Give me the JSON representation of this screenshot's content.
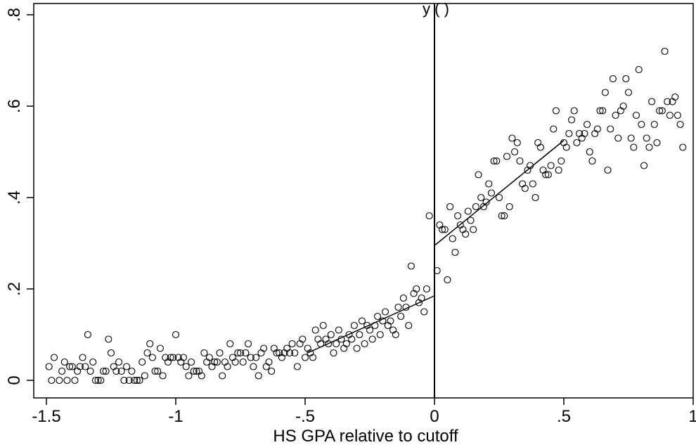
{
  "chart_data": {
    "type": "scatter",
    "title_partial": "y (   )",
    "xlabel": "HS GPA relative to cutoff",
    "ylabel": "",
    "xlim": [
      -1.5,
      1.0
    ],
    "ylim": [
      0,
      0.8
    ],
    "x_ticks": [
      {
        "value": -1.5,
        "label": "-1.5"
      },
      {
        "value": -1.0,
        "label": "-1"
      },
      {
        "value": -0.5,
        "label": "-.5"
      },
      {
        "value": 0.0,
        "label": "0"
      },
      {
        "value": 0.5,
        "label": ".5"
      },
      {
        "value": 1.0,
        "label": "1"
      }
    ],
    "y_ticks": [
      {
        "value": 0,
        "label": "0"
      },
      {
        "value": 0.2,
        "label": ".2"
      },
      {
        "value": 0.4,
        "label": ".4"
      },
      {
        "value": 0.6,
        "label": ".6"
      },
      {
        "value": 0.8,
        "label": ".8"
      }
    ],
    "cutoff_x": 0,
    "grid": false,
    "legend": "none",
    "points": [
      [
        -1.49,
        0.03
      ],
      [
        -1.48,
        0.0
      ],
      [
        -1.47,
        0.05
      ],
      [
        -1.45,
        0.0
      ],
      [
        -1.44,
        0.02
      ],
      [
        -1.43,
        0.04
      ],
      [
        -1.42,
        0.0
      ],
      [
        -1.41,
        0.03
      ],
      [
        -1.4,
        0.03
      ],
      [
        -1.39,
        0.0
      ],
      [
        -1.38,
        0.02
      ],
      [
        -1.37,
        0.03
      ],
      [
        -1.36,
        0.05
      ],
      [
        -1.35,
        0.03
      ],
      [
        -1.34,
        0.1
      ],
      [
        -1.33,
        0.02
      ],
      [
        -1.32,
        0.04
      ],
      [
        -1.31,
        0.0
      ],
      [
        -1.3,
        0.0
      ],
      [
        -1.29,
        0.0
      ],
      [
        -1.28,
        0.02
      ],
      [
        -1.27,
        0.02
      ],
      [
        -1.26,
        0.09
      ],
      [
        -1.25,
        0.06
      ],
      [
        -1.24,
        0.03
      ],
      [
        -1.23,
        0.02
      ],
      [
        -1.22,
        0.04
      ],
      [
        -1.21,
        0.02
      ],
      [
        -1.2,
        0.0
      ],
      [
        -1.19,
        0.03
      ],
      [
        -1.18,
        0.0
      ],
      [
        -1.17,
        0.02
      ],
      [
        -1.16,
        0.0
      ],
      [
        -1.15,
        0.0
      ],
      [
        -1.14,
        0.0
      ],
      [
        -1.13,
        0.04
      ],
      [
        -1.12,
        0.01
      ],
      [
        -1.11,
        0.06
      ],
      [
        -1.1,
        0.08
      ],
      [
        -1.09,
        0.05
      ],
      [
        -1.08,
        0.02
      ],
      [
        -1.07,
        0.02
      ],
      [
        -1.06,
        0.07
      ],
      [
        -1.05,
        0.01
      ],
      [
        -1.04,
        0.05
      ],
      [
        -1.03,
        0.04
      ],
      [
        -1.02,
        0.05
      ],
      [
        -1.01,
        0.05
      ],
      [
        -1.0,
        0.1
      ],
      [
        -0.99,
        0.05
      ],
      [
        -0.98,
        0.04
      ],
      [
        -0.97,
        0.05
      ],
      [
        -0.96,
        0.03
      ],
      [
        -0.95,
        0.01
      ],
      [
        -0.94,
        0.04
      ],
      [
        -0.93,
        0.02
      ],
      [
        -0.92,
        0.02
      ],
      [
        -0.91,
        0.02
      ],
      [
        -0.9,
        0.01
      ],
      [
        -0.89,
        0.06
      ],
      [
        -0.88,
        0.04
      ],
      [
        -0.87,
        0.05
      ],
      [
        -0.86,
        0.03
      ],
      [
        -0.85,
        0.04
      ],
      [
        -0.84,
        0.04
      ],
      [
        -0.83,
        0.06
      ],
      [
        -0.82,
        0.01
      ],
      [
        -0.81,
        0.04
      ],
      [
        -0.8,
        0.03
      ],
      [
        -0.79,
        0.08
      ],
      [
        -0.78,
        0.05
      ],
      [
        -0.77,
        0.04
      ],
      [
        -0.76,
        0.06
      ],
      [
        -0.75,
        0.06
      ],
      [
        -0.74,
        0.04
      ],
      [
        -0.73,
        0.06
      ],
      [
        -0.72,
        0.08
      ],
      [
        -0.71,
        0.05
      ],
      [
        -0.7,
        0.03
      ],
      [
        -0.69,
        0.05
      ],
      [
        -0.68,
        0.01
      ],
      [
        -0.67,
        0.06
      ],
      [
        -0.66,
        0.07
      ],
      [
        -0.65,
        0.03
      ],
      [
        -0.64,
        0.04
      ],
      [
        -0.63,
        0.02
      ],
      [
        -0.62,
        0.07
      ],
      [
        -0.61,
        0.06
      ],
      [
        -0.6,
        0.06
      ],
      [
        -0.59,
        0.05
      ],
      [
        -0.58,
        0.06
      ],
      [
        -0.57,
        0.07
      ],
      [
        -0.56,
        0.06
      ],
      [
        -0.55,
        0.08
      ],
      [
        -0.54,
        0.06
      ],
      [
        -0.53,
        0.03
      ],
      [
        -0.52,
        0.08
      ],
      [
        -0.51,
        0.09
      ],
      [
        -0.5,
        0.05
      ],
      [
        -0.49,
        0.07
      ],
      [
        -0.48,
        0.06
      ],
      [
        -0.47,
        0.05
      ],
      [
        -0.46,
        0.11
      ],
      [
        -0.45,
        0.09
      ],
      [
        -0.44,
        0.08
      ],
      [
        -0.43,
        0.12
      ],
      [
        -0.42,
        0.09
      ],
      [
        -0.41,
        0.08
      ],
      [
        -0.4,
        0.1
      ],
      [
        -0.39,
        0.06
      ],
      [
        -0.38,
        0.08
      ],
      [
        -0.37,
        0.11
      ],
      [
        -0.36,
        0.09
      ],
      [
        -0.35,
        0.07
      ],
      [
        -0.34,
        0.08
      ],
      [
        -0.33,
        0.1
      ],
      [
        -0.32,
        0.09
      ],
      [
        -0.31,
        0.12
      ],
      [
        -0.3,
        0.07
      ],
      [
        -0.29,
        0.1
      ],
      [
        -0.28,
        0.13
      ],
      [
        -0.27,
        0.08
      ],
      [
        -0.26,
        0.12
      ],
      [
        -0.25,
        0.11
      ],
      [
        -0.24,
        0.09
      ],
      [
        -0.23,
        0.12
      ],
      [
        -0.22,
        0.14
      ],
      [
        -0.21,
        0.1
      ],
      [
        -0.2,
        0.13
      ],
      [
        -0.19,
        0.15
      ],
      [
        -0.18,
        0.12
      ],
      [
        -0.17,
        0.13
      ],
      [
        -0.16,
        0.11
      ],
      [
        -0.15,
        0.1
      ],
      [
        -0.14,
        0.16
      ],
      [
        -0.13,
        0.14
      ],
      [
        -0.12,
        0.18
      ],
      [
        -0.11,
        0.16
      ],
      [
        -0.1,
        0.12
      ],
      [
        -0.09,
        0.25
      ],
      [
        -0.08,
        0.19
      ],
      [
        -0.07,
        0.2
      ],
      [
        -0.06,
        0.17
      ],
      [
        -0.05,
        0.18
      ],
      [
        -0.04,
        0.15
      ],
      [
        -0.03,
        0.2
      ],
      [
        -0.02,
        0.36
      ],
      [
        0.01,
        0.24
      ],
      [
        0.02,
        0.34
      ],
      [
        0.03,
        0.33
      ],
      [
        0.04,
        0.33
      ],
      [
        0.05,
        0.22
      ],
      [
        0.06,
        0.38
      ],
      [
        0.07,
        0.31
      ],
      [
        0.08,
        0.28
      ],
      [
        0.09,
        0.36
      ],
      [
        0.1,
        0.34
      ],
      [
        0.11,
        0.33
      ],
      [
        0.12,
        0.32
      ],
      [
        0.13,
        0.37
      ],
      [
        0.14,
        0.35
      ],
      [
        0.15,
        0.33
      ],
      [
        0.16,
        0.38
      ],
      [
        0.17,
        0.45
      ],
      [
        0.18,
        0.4
      ],
      [
        0.19,
        0.38
      ],
      [
        0.2,
        0.39
      ],
      [
        0.21,
        0.43
      ],
      [
        0.22,
        0.41
      ],
      [
        0.23,
        0.48
      ],
      [
        0.24,
        0.48
      ],
      [
        0.25,
        0.4
      ],
      [
        0.26,
        0.36
      ],
      [
        0.27,
        0.36
      ],
      [
        0.28,
        0.49
      ],
      [
        0.29,
        0.38
      ],
      [
        0.3,
        0.53
      ],
      [
        0.31,
        0.5
      ],
      [
        0.32,
        0.52
      ],
      [
        0.33,
        0.48
      ],
      [
        0.34,
        0.43
      ],
      [
        0.35,
        0.42
      ],
      [
        0.36,
        0.46
      ],
      [
        0.37,
        0.47
      ],
      [
        0.38,
        0.43
      ],
      [
        0.39,
        0.4
      ],
      [
        0.4,
        0.52
      ],
      [
        0.41,
        0.51
      ],
      [
        0.42,
        0.46
      ],
      [
        0.43,
        0.45
      ],
      [
        0.44,
        0.45
      ],
      [
        0.45,
        0.47
      ],
      [
        0.46,
        0.55
      ],
      [
        0.47,
        0.59
      ],
      [
        0.48,
        0.46
      ],
      [
        0.49,
        0.48
      ],
      [
        0.5,
        0.52
      ],
      [
        0.51,
        0.51
      ],
      [
        0.52,
        0.54
      ],
      [
        0.53,
        0.57
      ],
      [
        0.54,
        0.59
      ],
      [
        0.55,
        0.52
      ],
      [
        0.56,
        0.54
      ],
      [
        0.57,
        0.53
      ],
      [
        0.58,
        0.54
      ],
      [
        0.59,
        0.56
      ],
      [
        0.6,
        0.5
      ],
      [
        0.61,
        0.48
      ],
      [
        0.62,
        0.54
      ],
      [
        0.63,
        0.55
      ],
      [
        0.64,
        0.59
      ],
      [
        0.65,
        0.59
      ],
      [
        0.66,
        0.63
      ],
      [
        0.67,
        0.46
      ],
      [
        0.68,
        0.55
      ],
      [
        0.69,
        0.66
      ],
      [
        0.7,
        0.58
      ],
      [
        0.71,
        0.53
      ],
      [
        0.72,
        0.59
      ],
      [
        0.73,
        0.6
      ],
      [
        0.74,
        0.66
      ],
      [
        0.75,
        0.63
      ],
      [
        0.76,
        0.53
      ],
      [
        0.77,
        0.51
      ],
      [
        0.78,
        0.58
      ],
      [
        0.79,
        0.68
      ],
      [
        0.8,
        0.56
      ],
      [
        0.81,
        0.47
      ],
      [
        0.82,
        0.53
      ],
      [
        0.83,
        0.51
      ],
      [
        0.84,
        0.61
      ],
      [
        0.85,
        0.56
      ],
      [
        0.86,
        0.52
      ],
      [
        0.87,
        0.59
      ],
      [
        0.88,
        0.59
      ],
      [
        0.89,
        0.72
      ],
      [
        0.9,
        0.61
      ],
      [
        0.91,
        0.58
      ],
      [
        0.92,
        0.61
      ],
      [
        0.93,
        0.62
      ],
      [
        0.94,
        0.58
      ],
      [
        0.95,
        0.56
      ],
      [
        0.96,
        0.51
      ]
    ],
    "fit_lines": [
      {
        "x": [
          -0.49,
          0.0
        ],
        "y": [
          0.06,
          0.185
        ]
      },
      {
        "x": [
          0.0,
          0.5
        ],
        "y": [
          0.295,
          0.525
        ]
      }
    ]
  }
}
